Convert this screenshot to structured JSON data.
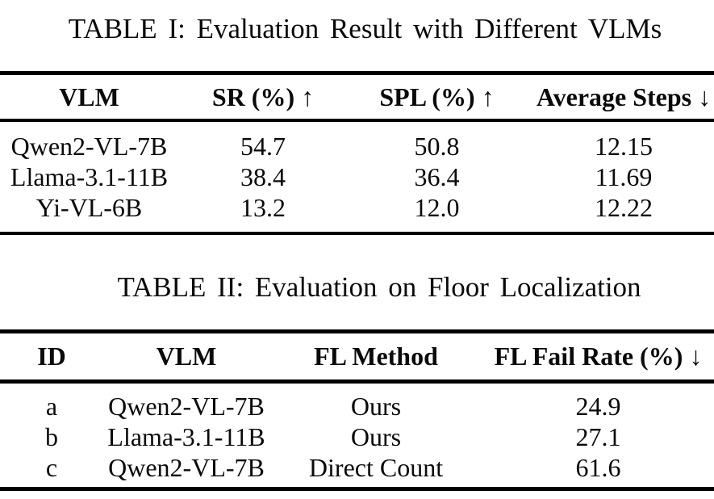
{
  "page": {
    "background_color": "#ffffff",
    "text_color": "#0a0a0a",
    "rule_color": "#000000"
  },
  "tables": [
    {
      "caption": "TABLE I: Evaluation Result with Different VLMs",
      "headers": [
        "VLM",
        "SR (%) ↑",
        "SPL (%) ↑",
        "Average Steps ↓"
      ],
      "rows": [
        [
          "Qwen2-VL-7B",
          "54.7",
          "50.8",
          "12.15"
        ],
        [
          "Llama-3.1-11B",
          "38.4",
          "36.4",
          "11.69"
        ],
        [
          "Yi-VL-6B",
          "13.2",
          "12.0",
          "12.22"
        ]
      ]
    },
    {
      "caption": "TABLE II: Evaluation on Floor Localization",
      "headers": [
        "ID",
        "VLM",
        "FL Method",
        "FL Fail Rate (%) ↓"
      ],
      "rows": [
        [
          "a",
          "Qwen2-VL-7B",
          "Ours",
          "24.9"
        ],
        [
          "b",
          "Llama-3.1-11B",
          "Ours",
          "27.1"
        ],
        [
          "c",
          "Qwen2-VL-7B",
          "Direct Count",
          "61.6"
        ]
      ]
    }
  ]
}
